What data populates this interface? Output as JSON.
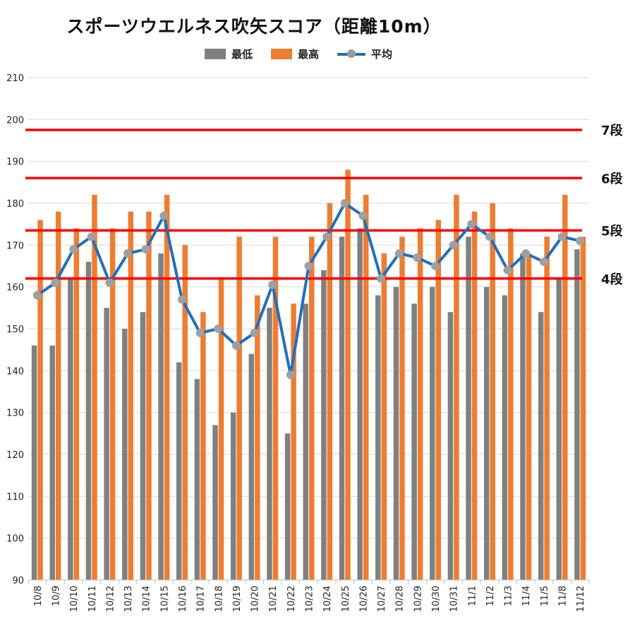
{
  "title": "スポーツウエルネス吹矢スコア（距離10m）",
  "legend": {
    "min_label": "最低",
    "max_label": "最高",
    "avg_label": "平均"
  },
  "colors": {
    "min": "#808080",
    "max": "#ED7D31",
    "avg_line": "#1F6FBF",
    "avg_marker": "#A0A0A0",
    "ref_line": "#FF0000",
    "grid": "#D9D9D9"
  },
  "chart_data": {
    "type": "bar",
    "title": "スポーツウエルネス吹矢スコア（距離10m）",
    "xlabel": "",
    "ylabel": "",
    "ylim": [
      90,
      210
    ],
    "yticks": [
      90,
      100,
      110,
      120,
      130,
      140,
      150,
      160,
      170,
      180,
      190,
      200,
      210
    ],
    "grid": true,
    "legend_position": "top",
    "categories": [
      "10/8",
      "10/9",
      "10/10",
      "10/11",
      "10/12",
      "10/13",
      "10/14",
      "10/15",
      "10/16",
      "10/17",
      "10/18",
      "10/19",
      "10/20",
      "10/21",
      "10/22",
      "10/23",
      "10/24",
      "10/25",
      "10/26",
      "10/27",
      "10/28",
      "10/29",
      "10/30",
      "10/31",
      "11/1",
      "11/2",
      "11/3",
      "11/4",
      "11/5",
      "11/8",
      "11/12"
    ],
    "series": [
      {
        "name": "最低",
        "type": "bar",
        "values": [
          146,
          146,
          162,
          166,
          155,
          150,
          154,
          168,
          142,
          138,
          127,
          130,
          144,
          155,
          125,
          156,
          164,
          172,
          174,
          158,
          160,
          156,
          160,
          154,
          172,
          160,
          158,
          168,
          154,
          162,
          169
        ]
      },
      {
        "name": "最高",
        "type": "bar",
        "values": [
          176,
          178,
          174,
          182,
          174,
          178,
          178,
          182,
          170,
          154,
          162,
          172,
          158,
          172,
          156,
          172,
          180,
          188,
          182,
          168,
          172,
          174,
          176,
          182,
          178,
          180,
          174,
          168,
          172,
          182,
          172
        ]
      },
      {
        "name": "平均",
        "type": "line",
        "values": [
          158,
          161,
          169,
          172,
          161,
          168,
          169,
          177,
          157,
          149,
          150,
          146,
          149,
          160.5,
          139,
          165,
          172,
          180,
          177,
          162,
          168,
          167,
          165,
          170,
          175,
          172,
          164,
          168,
          166,
          172,
          171
        ]
      }
    ],
    "reference_lines": [
      {
        "value": 197.5,
        "label": "7段"
      },
      {
        "value": 186,
        "label": "6段"
      },
      {
        "value": 173.5,
        "label": "5段"
      },
      {
        "value": 162,
        "label": "4段"
      }
    ]
  }
}
